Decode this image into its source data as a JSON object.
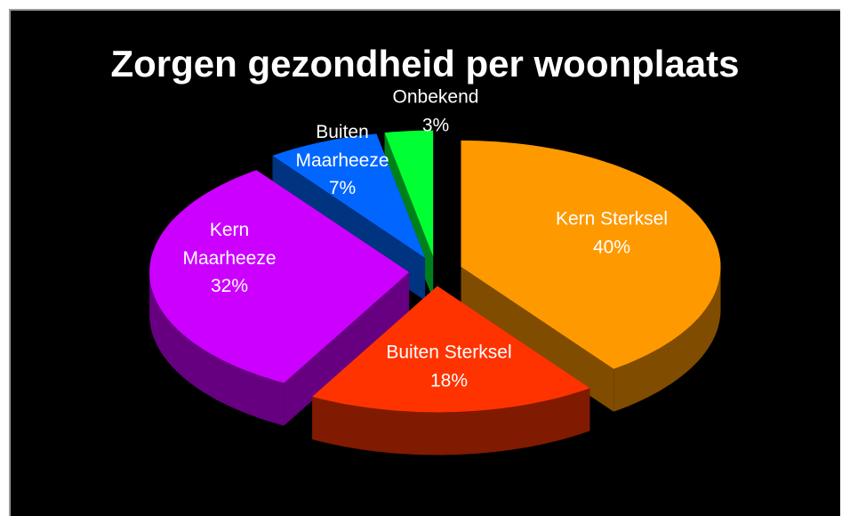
{
  "chart_data": {
    "type": "pie",
    "title": "Zorgen gezondheid per woonplaats",
    "categories": [
      "Kern Sterksel",
      "Buiten Sterksel",
      "Kern Maarheeze",
      "Buiten Maarheeze",
      "Onbekend"
    ],
    "values": [
      40,
      18,
      32,
      7,
      3
    ],
    "value_labels": [
      "40%",
      "18%",
      "32%",
      "7%",
      "3%"
    ],
    "colors": [
      "#ff9900",
      "#ff3300",
      "#cc00ff",
      "#0066ff",
      "#00ff33"
    ]
  }
}
